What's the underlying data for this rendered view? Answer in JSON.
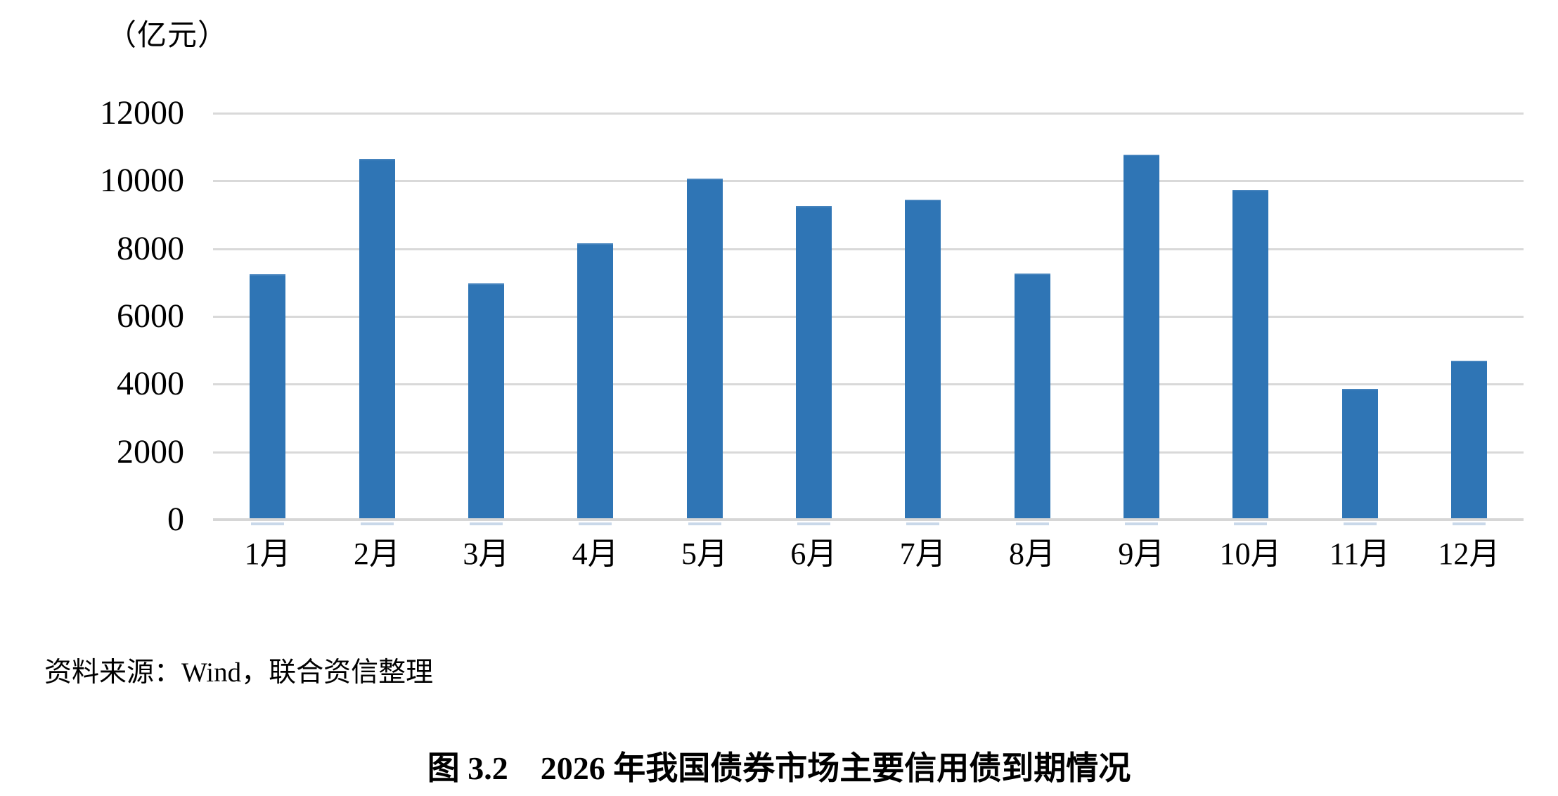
{
  "chart": {
    "unit_label": "（亿元）",
    "bar_color": "#2f75b5",
    "gridline_color": "#d9d9d9",
    "text_color": "#000000"
  },
  "chart_data": {
    "type": "bar",
    "title": "图 3.2　2026 年我国债券市场主要信用债到期情况",
    "categories": [
      "1月",
      "2月",
      "3月",
      "4月",
      "5月",
      "6月",
      "7月",
      "8月",
      "9月",
      "10月",
      "11月",
      "12月"
    ],
    "values": [
      7250,
      10650,
      6980,
      8150,
      10070,
      9260,
      9440,
      7270,
      10780,
      9730,
      3870,
      4700
    ],
    "xlabel": "",
    "ylabel": "（亿元）",
    "ylim": [
      0,
      12000
    ],
    "yticks": [
      0,
      2000,
      4000,
      6000,
      8000,
      10000,
      12000
    ],
    "grid": true,
    "legend": false
  },
  "source_note": "资料来源：Wind，联合资信整理",
  "figure_title": "图 3.2　2026 年我国债券市场主要信用债到期情况"
}
